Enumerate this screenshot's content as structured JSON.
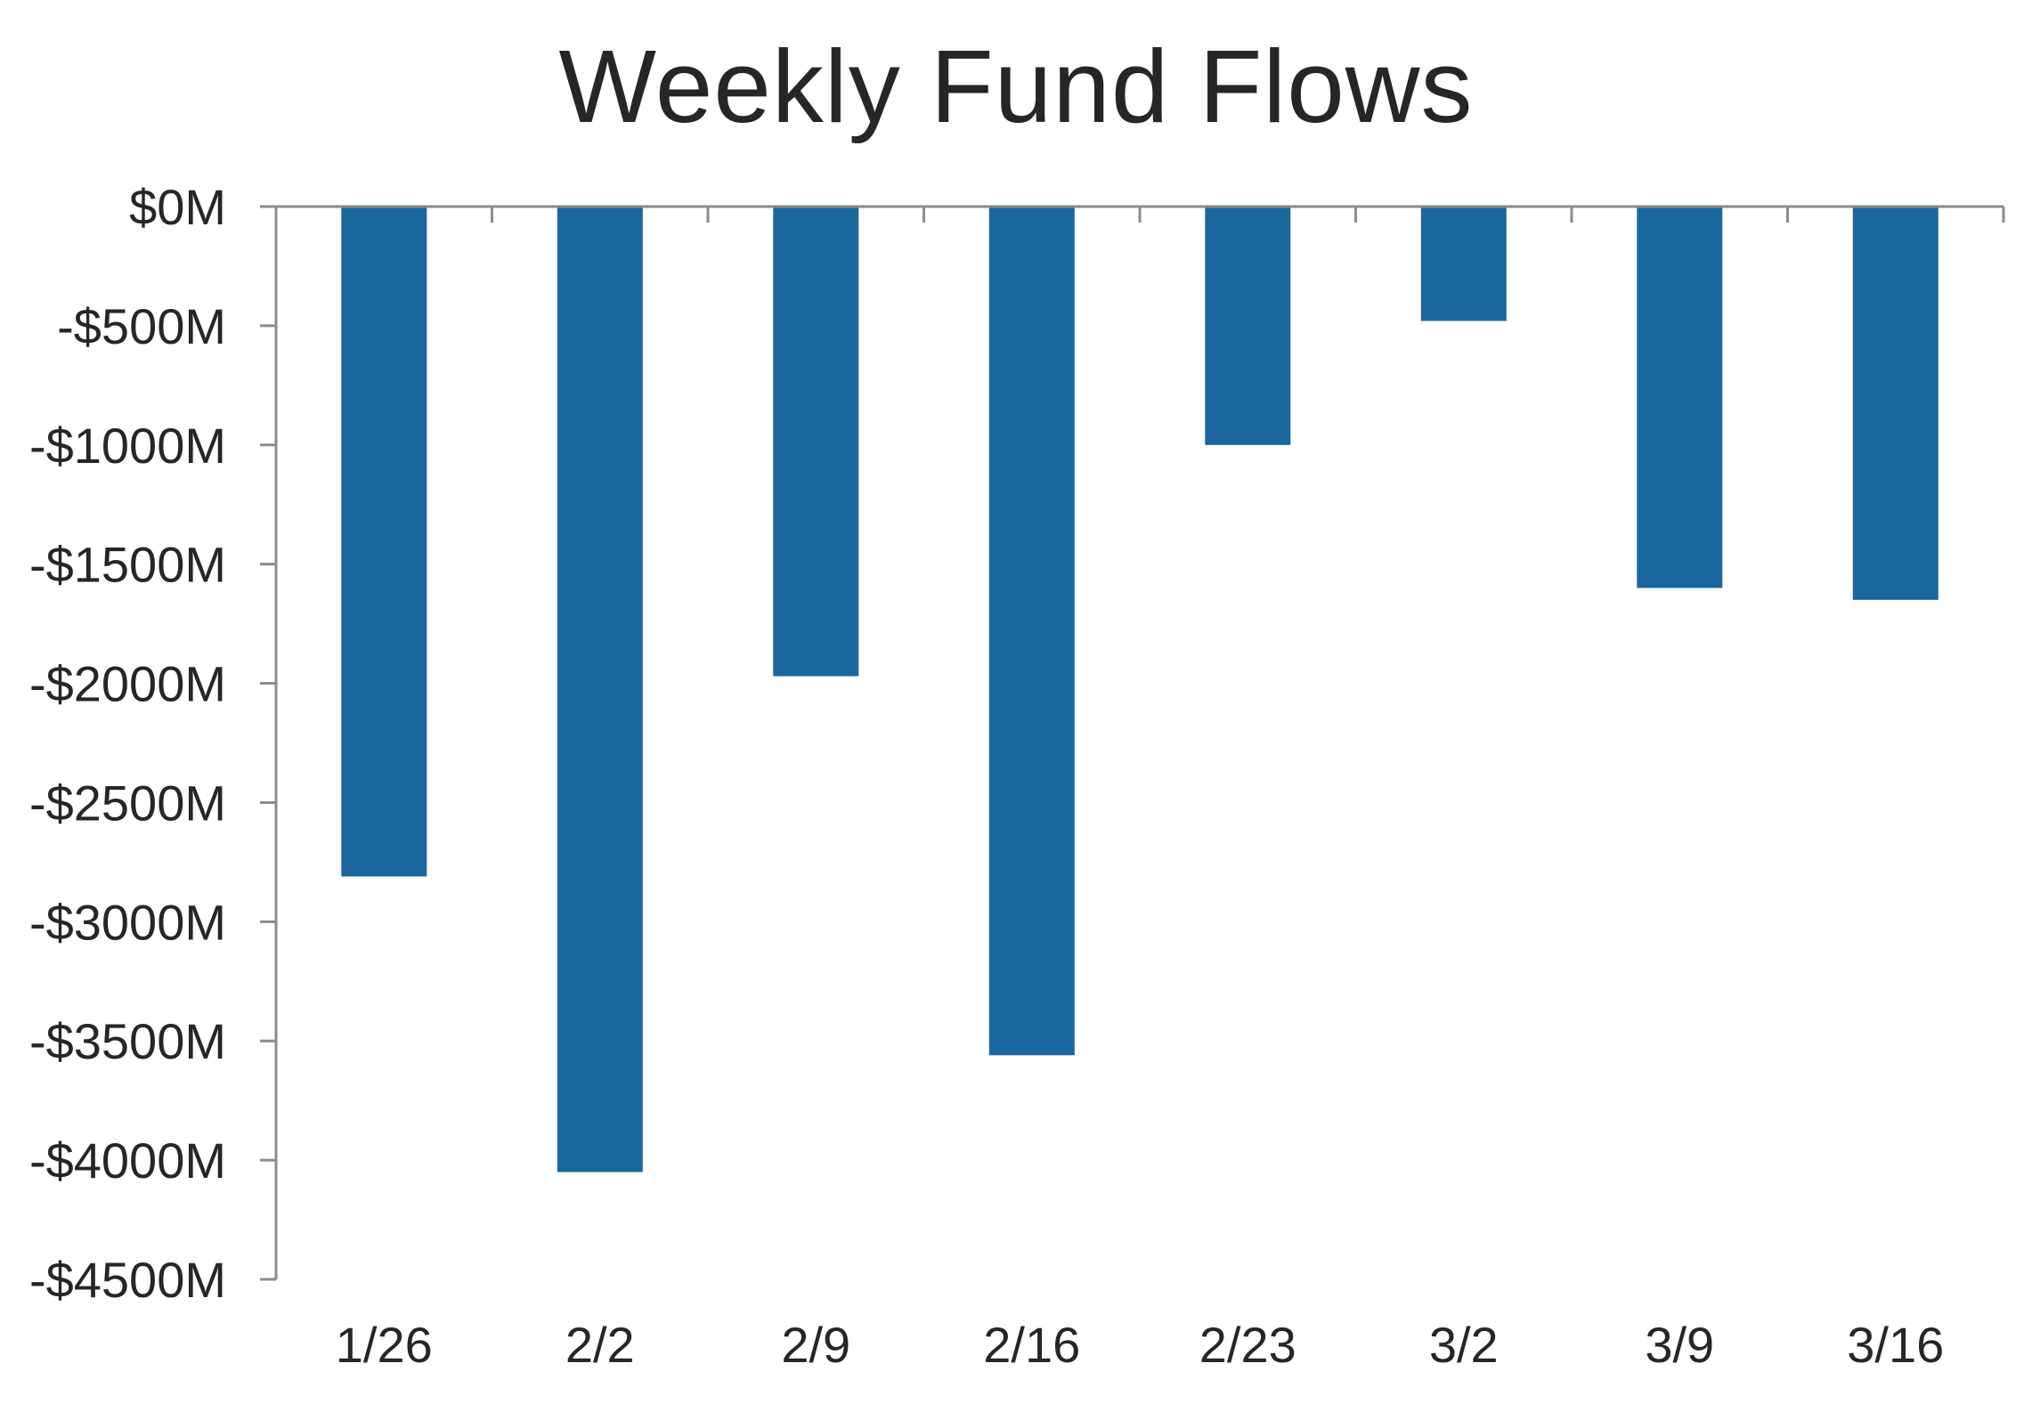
{
  "chart_data": {
    "type": "bar",
    "title": "Weekly Fund Flows",
    "xlabel": "",
    "ylabel": "",
    "categories": [
      "1/26",
      "2/2",
      "2/9",
      "2/16",
      "2/23",
      "3/2",
      "3/9",
      "3/16"
    ],
    "values": [
      -2810,
      -4050,
      -1970,
      -3560,
      -1000,
      -480,
      -1600,
      -1650
    ],
    "ylim": [
      -4500,
      0
    ],
    "ytick_values": [
      0,
      -500,
      -1000,
      -1500,
      -2000,
      -2500,
      -3000,
      -3500,
      -4000,
      -4500
    ],
    "ytick_labels": [
      "$0M",
      "-$500M",
      "-$1000M",
      "-$1500M",
      "-$2000M",
      "-$2500M",
      "-$3000M",
      "-$3500M",
      "-$4000M",
      "-$4500M"
    ],
    "bar_color": "#1a67a0",
    "grid": false,
    "legend": "none"
  }
}
